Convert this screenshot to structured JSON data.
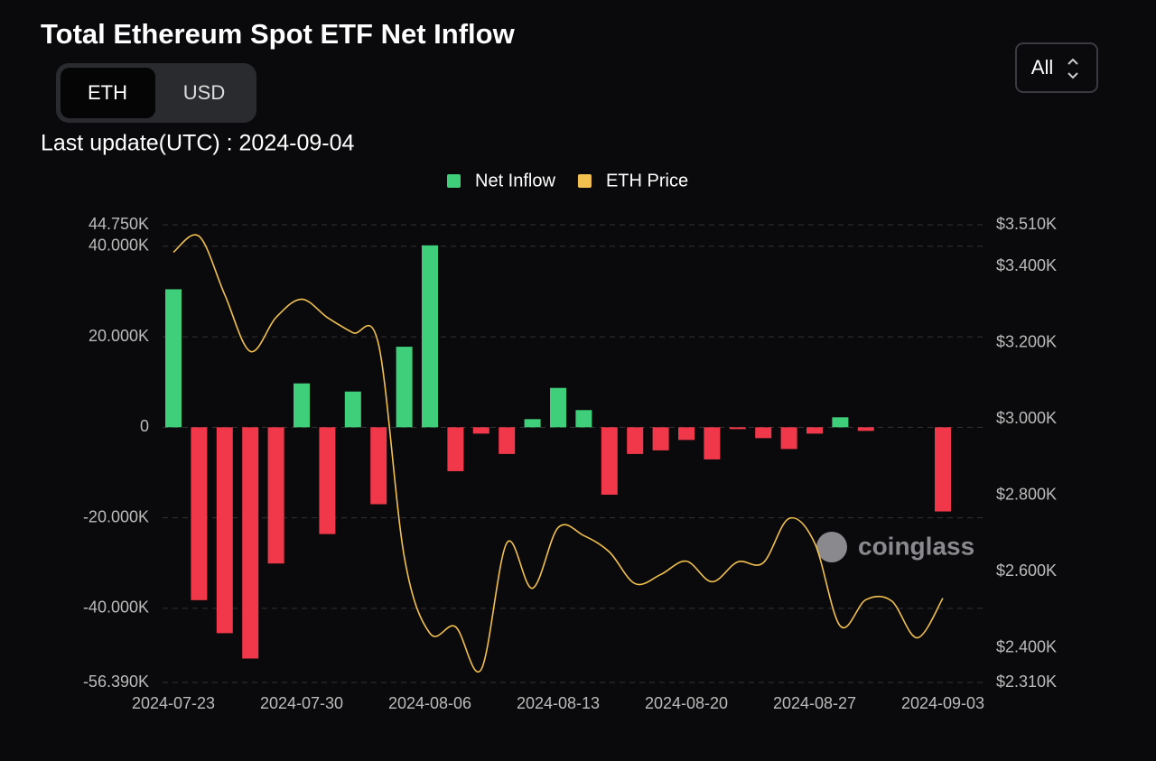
{
  "header": {
    "title": "Total Ethereum Spot ETF Net Inflow",
    "toggle": [
      "ETH",
      "USD"
    ],
    "active_toggle": "ETH",
    "range_select": "All",
    "last_update": "Last update(UTC) : 2024-09-04",
    "watermark": "coinglass"
  },
  "chart_data": {
    "type": "bar_line",
    "categories": [
      "2024-07-23",
      null,
      null,
      null,
      null,
      "2024-07-30",
      null,
      null,
      null,
      null,
      "2024-08-06",
      null,
      null,
      null,
      null,
      "2024-08-13",
      null,
      null,
      null,
      null,
      "2024-08-20",
      null,
      null,
      null,
      null,
      "2024-08-27",
      null,
      null,
      null,
      null,
      "2024-09-03"
    ],
    "series": [
      {
        "name": "Net Inflow",
        "type": "bar",
        "color": "#3fcf7b",
        "negative_color": "#f0384a",
        "values": [
          30500,
          -38200,
          -45500,
          -51100,
          -30100,
          9700,
          -23600,
          7900,
          -17000,
          17800,
          40200,
          -9700,
          -1400,
          -5900,
          1800,
          8700,
          3800,
          -14900,
          -5900,
          -5100,
          -2800,
          -7100,
          -400,
          -2400,
          -4800,
          -1400,
          2200,
          -800,
          null,
          null,
          -18600
        ]
      },
      {
        "name": "ETH Price",
        "type": "line",
        "axis": "y2",
        "color": "#f2c04e",
        "values": [
          3438,
          3480,
          3327,
          3178,
          3267,
          3315,
          3267,
          3227,
          3196,
          2640,
          2439,
          2456,
          2344,
          2676,
          2557,
          2716,
          2695,
          2652,
          2569,
          2593,
          2628,
          2574,
          2626,
          2624,
          2740,
          2676,
          2458,
          2527,
          2524,
          2427,
          2531
        ]
      }
    ],
    "ylim": [
      -56390,
      44750
    ],
    "yticks": [
      {
        "value": -56390,
        "label": "-56.390K"
      },
      {
        "value": -40000,
        "label": "-40.000K"
      },
      {
        "value": -20000,
        "label": "-20.000K"
      },
      0,
      {
        "value": 20000,
        "label": "20.000K"
      },
      {
        "value": 40000,
        "label": "40.000K"
      },
      {
        "value": 44750,
        "label": "44.750K"
      }
    ],
    "y2lim": [
      2310,
      3510
    ],
    "y2ticks": [
      {
        "value": 2310,
        "label": "$2.310K"
      },
      {
        "value": 2400,
        "label": "$2.400K"
      },
      {
        "value": 2600,
        "label": "$2.600K"
      },
      {
        "value": 2800,
        "label": "$2.800K"
      },
      {
        "value": 3000,
        "label": "$3.000K"
      },
      {
        "value": 3200,
        "label": "$3.200K"
      },
      {
        "value": 3400,
        "label": "$3.400K"
      },
      {
        "value": 3510,
        "label": "$3.510K"
      }
    ],
    "grid": true,
    "legend": "top"
  }
}
